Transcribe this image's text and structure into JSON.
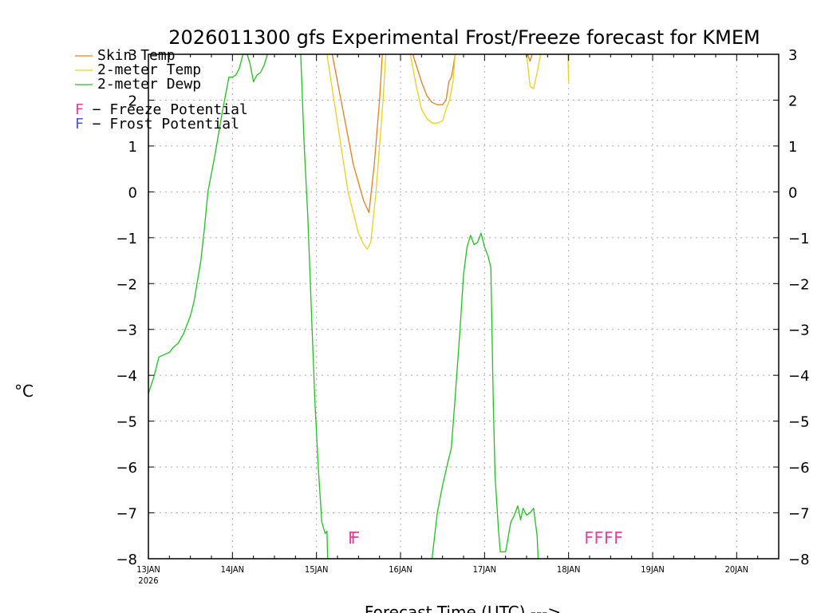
{
  "chart_data": {
    "type": "line",
    "title": "2026011300 gfs Experimental Frost/Freeze forecast for KMEM",
    "xlabel": "Forecast Time (UTC) --->",
    "ylabel": "°C",
    "ylim": [
      -8,
      3
    ],
    "yticks": [
      -8,
      -7,
      -6,
      -5,
      -4,
      -3,
      -2,
      -1,
      0,
      1,
      2,
      3
    ],
    "ytick_labels": [
      "−8",
      "−7",
      "−6",
      "−5",
      "−4",
      "−3",
      "−2",
      "−1",
      "0",
      "1",
      "2",
      "3"
    ],
    "xlim_hours": [
      0,
      180
    ],
    "x_unit": "hours since 2026-01-13 00 UTC",
    "xtick_hours": [
      0,
      24,
      48,
      72,
      96,
      120,
      144,
      168
    ],
    "xtick_labels": [
      "13JAN",
      "14JAN",
      "15JAN",
      "16JAN",
      "17JAN",
      "18JAN",
      "19JAN",
      "20JAN"
    ],
    "xtick_sublabel": "2026",
    "grid": true,
    "legend_position": "top-left",
    "series": [
      {
        "name": "Skin Temp",
        "legend_label": "Skin Temp",
        "color": "#e08020",
        "segments": [
          [
            [
              52.5,
              3.0
            ],
            [
              55.5,
              1.8
            ],
            [
              58.5,
              0.6
            ],
            [
              61.5,
              -0.2
            ],
            [
              63.0,
              -0.45
            ],
            [
              64.5,
              0.6
            ],
            [
              66.0,
              2.0
            ],
            [
              66.8,
              3.0
            ]
          ],
          [
            [
              75.5,
              3.0
            ],
            [
              78.0,
              2.4
            ],
            [
              79.5,
              2.1
            ],
            [
              81.0,
              1.95
            ],
            [
              82.5,
              1.9
            ],
            [
              84.0,
              1.9
            ],
            [
              85.0,
              2.0
            ],
            [
              85.8,
              2.4
            ],
            [
              86.5,
              2.5
            ],
            [
              87.0,
              2.7
            ],
            [
              87.6,
              3.0
            ]
          ],
          [
            [
              108.3,
              3.0
            ],
            [
              109.0,
              2.85
            ],
            [
              109.6,
              3.0
            ]
          ]
        ]
      },
      {
        "name": "2-meter Temp",
        "legend_label": "2-meter Temp",
        "color": "#e8d020",
        "segments": [
          [
            [
              51.0,
              3.0
            ],
            [
              54.0,
              1.5
            ],
            [
              57.0,
              0.0
            ],
            [
              60.0,
              -0.9
            ],
            [
              61.5,
              -1.15
            ],
            [
              62.5,
              -1.25
            ],
            [
              63.5,
              -1.1
            ],
            [
              65.0,
              0.0
            ],
            [
              67.0,
              2.0
            ],
            [
              67.8,
              3.0
            ]
          ],
          [
            [
              74.8,
              3.0
            ],
            [
              76.5,
              2.3
            ],
            [
              78.0,
              1.8
            ],
            [
              79.5,
              1.6
            ],
            [
              81.0,
              1.5
            ],
            [
              82.5,
              1.5
            ],
            [
              84.0,
              1.55
            ],
            [
              85.0,
              1.8
            ],
            [
              86.0,
              2.0
            ],
            [
              87.0,
              2.4
            ],
            [
              87.6,
              3.0
            ]
          ],
          [
            [
              108.0,
              3.0
            ],
            [
              109.0,
              2.3
            ],
            [
              110.0,
              2.25
            ],
            [
              111.0,
              2.6
            ],
            [
              112.0,
              3.0
            ]
          ],
          [
            [
              119.8,
              3.0
            ],
            [
              120.0,
              2.4
            ]
          ]
        ]
      },
      {
        "name": "2-meter Dewp",
        "legend_label": "2-meter Dewp",
        "color": "#20c020",
        "segments": [
          [
            [
              0,
              -4.4
            ],
            [
              1.5,
              -4.05
            ],
            [
              3.0,
              -3.6
            ],
            [
              4.5,
              -3.55
            ],
            [
              6.0,
              -3.5
            ],
            [
              7.0,
              -3.4
            ],
            [
              8.5,
              -3.3
            ],
            [
              10.0,
              -3.1
            ],
            [
              12.0,
              -2.7
            ],
            [
              13.0,
              -2.4
            ],
            [
              15.0,
              -1.5
            ],
            [
              16.0,
              -0.8
            ],
            [
              17.0,
              0.0
            ],
            [
              19.0,
              0.8
            ],
            [
              21.0,
              1.7
            ],
            [
              23.0,
              2.5
            ],
            [
              24.0,
              2.5
            ],
            [
              25.0,
              2.55
            ],
            [
              26.0,
              2.7
            ],
            [
              27.0,
              3.0
            ],
            [
              28.2,
              3.0
            ],
            [
              29.0,
              2.8
            ],
            [
              30.0,
              2.4
            ],
            [
              31.0,
              2.55
            ],
            [
              32.0,
              2.6
            ],
            [
              33.0,
              2.75
            ],
            [
              34.0,
              3.0
            ]
          ],
          [
            [
              43.5,
              3.0
            ],
            [
              44.5,
              1.0
            ],
            [
              45.5,
              -0.5
            ],
            [
              46.5,
              -2.5
            ],
            [
              47.5,
              -4.5
            ],
            [
              48.5,
              -6.0
            ],
            [
              49.5,
              -7.2
            ],
            [
              50.5,
              -7.45
            ],
            [
              51.0,
              -7.4
            ],
            [
              51.2,
              -8.0
            ]
          ],
          [
            [
              81.0,
              -8.0
            ],
            [
              82.5,
              -7.0
            ],
            [
              84.0,
              -6.4
            ],
            [
              85.5,
              -5.9
            ],
            [
              86.5,
              -5.6
            ],
            [
              87.5,
              -4.6
            ],
            [
              89.0,
              -3.0
            ],
            [
              90.0,
              -1.8
            ],
            [
              91.0,
              -1.2
            ],
            [
              92.0,
              -0.95
            ],
            [
              93.0,
              -1.15
            ],
            [
              94.0,
              -1.1
            ],
            [
              95.0,
              -0.9
            ],
            [
              96.0,
              -1.2
            ],
            [
              97.0,
              -1.4
            ],
            [
              97.8,
              -1.65
            ],
            [
              98.5,
              -4.6
            ],
            [
              99.0,
              -6.2
            ],
            [
              100.0,
              -7.4
            ],
            [
              100.5,
              -7.85
            ],
            [
              102.0,
              -7.85
            ],
            [
              103.5,
              -7.2
            ],
            [
              104.5,
              -7.05
            ],
            [
              105.5,
              -6.85
            ],
            [
              106.3,
              -7.15
            ],
            [
              107.0,
              -6.9
            ],
            [
              108.0,
              -7.05
            ],
            [
              109.0,
              -7.0
            ],
            [
              110.0,
              -6.9
            ],
            [
              111.0,
              -7.5
            ],
            [
              111.3,
              -8.0
            ]
          ]
        ]
      }
    ],
    "freeze_flags": [
      {
        "text": "F",
        "hour": 58.3
      },
      {
        "text": "F",
        "hour": 59.1
      },
      {
        "text": "F",
        "hour": 125.8
      },
      {
        "text": "F",
        "hour": 128.6
      },
      {
        "text": "F",
        "hour": 131.4
      },
      {
        "text": "F",
        "hour": 134.2
      }
    ],
    "flag_colors": {
      "freeze": "#e040a0",
      "frost": "#5050e0"
    },
    "legend_notes": [
      {
        "flag": "F",
        "text": " − Freeze Potential",
        "color": "#e040a0"
      },
      {
        "flag": "F",
        "text": " − Frost Potential",
        "color": "#5050e0"
      }
    ]
  }
}
